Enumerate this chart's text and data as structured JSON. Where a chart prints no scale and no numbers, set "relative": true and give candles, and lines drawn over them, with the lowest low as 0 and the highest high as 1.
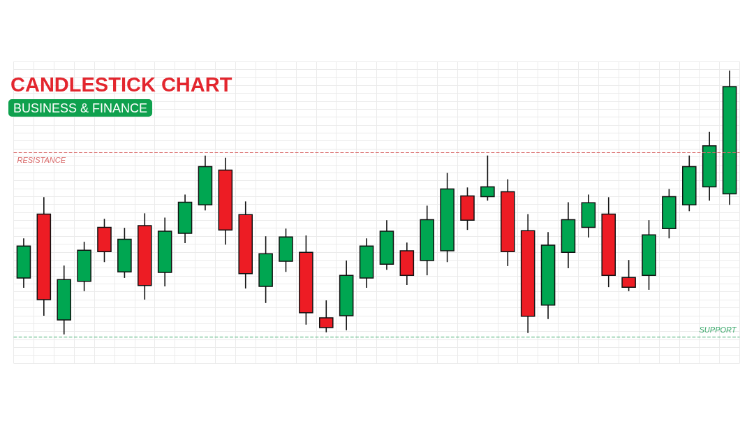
{
  "chart_data": {
    "type": "candlestick",
    "title": "CANDLESTICK CHART",
    "subtitle": "BUSINESS & FINANCE",
    "categories": [
      null,
      null,
      null,
      null,
      null,
      null,
      null,
      null,
      null,
      null,
      null,
      null,
      null,
      null,
      null,
      null,
      null,
      null,
      null,
      null,
      null,
      null,
      null,
      null,
      null,
      null,
      null,
      null,
      null,
      null,
      null,
      null,
      null,
      null,
      null,
      null
    ],
    "ohlc": [
      [
        0.214,
        0.364,
        0.177,
        0.335
      ],
      [
        0.456,
        0.52,
        0.071,
        0.132
      ],
      [
        0.055,
        0.261,
        0,
        0.208
      ],
      [
        0.201,
        0.351,
        0.164,
        0.319
      ],
      [
        0.406,
        0.438,
        0.274,
        0.314
      ],
      [
        0.237,
        0.404,
        0.214,
        0.361
      ],
      [
        0.412,
        0.459,
        0.132,
        0.185
      ],
      [
        0.235,
        0.443,
        0.182,
        0.391
      ],
      [
        0.383,
        0.53,
        0.346,
        0.501
      ],
      [
        0.491,
        0.678,
        0.47,
        0.636
      ],
      [
        0.623,
        0.67,
        0.34,
        0.396
      ],
      [
        0.454,
        0.504,
        0.174,
        0.23
      ],
      [
        0.182,
        0.372,
        0.119,
        0.306
      ],
      [
        0.277,
        0.401,
        0.237,
        0.369
      ],
      [
        0.311,
        0.375,
        0.037,
        0.082
      ],
      [
        0.063,
        0.129,
        0.008,
        0.026
      ],
      [
        0.071,
        0.28,
        0.016,
        0.224
      ],
      [
        0.214,
        0.364,
        0.177,
        0.335
      ],
      [
        0.266,
        0.433,
        0.245,
        0.391
      ],
      [
        0.317,
        0.348,
        0.187,
        0.224
      ],
      [
        0.28,
        0.488,
        0.224,
        0.435
      ],
      [
        0.317,
        0.612,
        0.274,
        0.551
      ],
      [
        0.525,
        0.557,
        0.396,
        0.433
      ],
      [
        0.522,
        0.678,
        0.507,
        0.559
      ],
      [
        0.541,
        0.588,
        0.259,
        0.314
      ],
      [
        0.393,
        0.456,
        0.005,
        0.069
      ],
      [
        0.111,
        0.388,
        0.058,
        0.338
      ],
      [
        0.311,
        0.501,
        0.251,
        0.435
      ],
      [
        0.406,
        0.53,
        0.367,
        0.499
      ],
      [
        0.456,
        0.52,
        0.179,
        0.224
      ],
      [
        0.216,
        0.282,
        0.164,
        0.179
      ],
      [
        0.224,
        0.433,
        0.169,
        0.377
      ],
      [
        0.401,
        0.551,
        0.364,
        0.522
      ],
      [
        0.491,
        0.678,
        0.467,
        0.636
      ],
      [
        0.559,
        0.768,
        0.507,
        0.715
      ],
      [
        0.533,
        1,
        0.491,
        0.939
      ]
    ],
    "colors": [
      "#00a651",
      "#ed1c24",
      "#00a651",
      "#00a651",
      "#ed1c24",
      "#00a651",
      "#ed1c24",
      "#00a651",
      "#00a651",
      "#00a651",
      "#ed1c24",
      "#ed1c24",
      "#00a651",
      "#00a651",
      "#ed1c24",
      "#ed1c24",
      "#00a651",
      "#00a651",
      "#00a651",
      "#ed1c24",
      "#00a651",
      "#00a651",
      "#ed1c24",
      "#00a651",
      "#ed1c24",
      "#ed1c24",
      "#00a651",
      "#00a651",
      "#00a651",
      "#ed1c24",
      "#ed1c24",
      "#00a651",
      "#00a651",
      "#00a651",
      "#00a651",
      "#00a651"
    ],
    "relative": true,
    "ref_lines": [
      {
        "axis": "y",
        "value": 0.689,
        "label": "RESISTANCE",
        "color": "#d96a6a",
        "line_style": "dashed"
      },
      {
        "axis": "y",
        "value": -0.013,
        "label": "SUPPORT",
        "color": "#3aa86a",
        "line_style": "dashed"
      }
    ],
    "grid": true
  }
}
